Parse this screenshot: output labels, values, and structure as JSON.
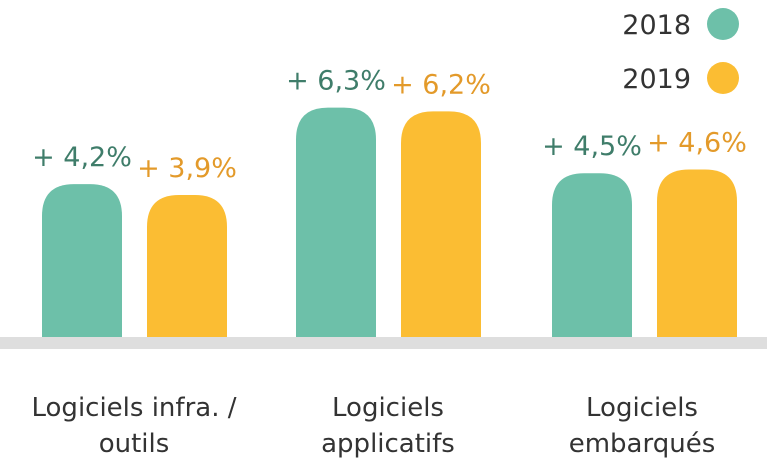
{
  "chart_data": {
    "type": "bar",
    "categories": [
      [
        "Logiciels infra. /",
        "outils"
      ],
      [
        "Logiciels",
        "applicatifs"
      ],
      [
        "Logiciels",
        "embarqués"
      ]
    ],
    "series": [
      {
        "name": "2018",
        "color": "#6dc0a9",
        "label_color": "#3f7d6a",
        "values": [
          4.2,
          6.3,
          4.5
        ],
        "labels": [
          "+ 4,2%",
          "+ 6,3%",
          "+ 4,5%"
        ]
      },
      {
        "name": "2019",
        "color": "#fbbd33",
        "label_color": "#e39a2a",
        "values": [
          3.9,
          6.2,
          4.6
        ],
        "labels": [
          "+ 3,9%",
          "+ 6,2%",
          "+ 4,6%"
        ]
      }
    ],
    "legend_position": "top-right",
    "baseline_color": "#dedede",
    "grid": false
  }
}
